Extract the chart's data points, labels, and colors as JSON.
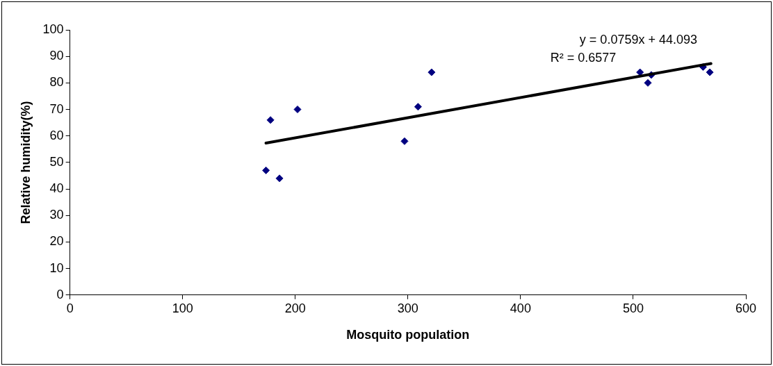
{
  "chart_data": {
    "type": "scatter",
    "xlabel": "Mosquito population",
    "ylabel": "Relative humidity(%)",
    "xlim": [
      0,
      600
    ],
    "xticks": [
      0,
      100,
      200,
      300,
      400,
      500,
      600
    ],
    "ylim": [
      0,
      100
    ],
    "yticks": [
      0,
      10,
      20,
      30,
      40,
      50,
      60,
      70,
      80,
      90,
      100
    ],
    "grid": false,
    "legend": false,
    "series": [
      {
        "marker": "diamond",
        "color": "#000080",
        "x": [
          174,
          178,
          186,
          202,
          297,
          309,
          321,
          506,
          513,
          516,
          562,
          568
        ],
        "values": [
          47,
          66,
          44,
          70,
          58,
          71,
          84,
          84,
          80,
          83,
          86,
          84
        ]
      },
      {
        "type": "line",
        "marker": "none",
        "color": "#000000",
        "x": [
          174,
          569
        ],
        "values": [
          57.3,
          87.3
        ]
      }
    ],
    "annotations": [
      "y = 0.0759x + 44.093",
      "R² = 0.6577"
    ]
  }
}
